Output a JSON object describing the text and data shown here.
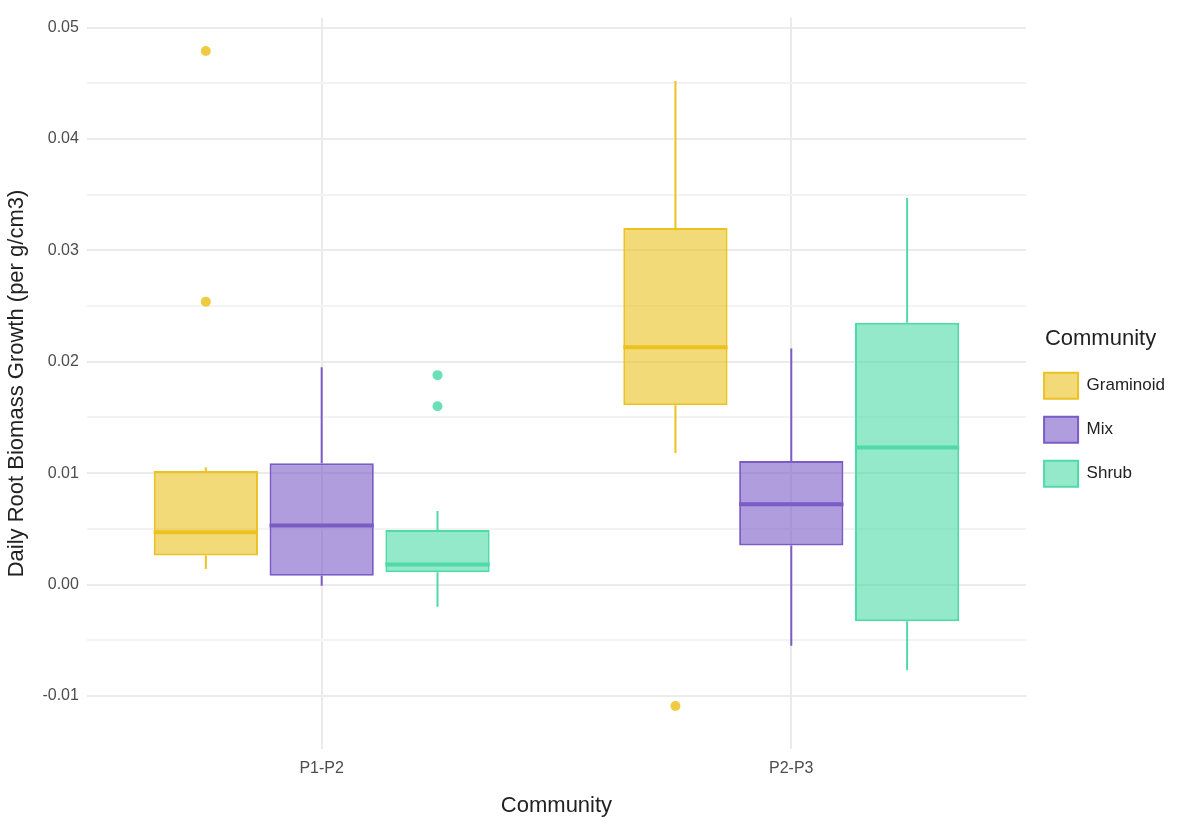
{
  "chart_data": {
    "type": "box",
    "xlabel": "Community",
    "ylabel": "Daily Root Biomass Growth (per g/cm3)",
    "legend_title": "Community",
    "legend": "right",
    "grid": true,
    "categories": [
      "P1-P2",
      "P2-P3"
    ],
    "ylim": [
      -0.0148,
      0.0509
    ],
    "yticks": [
      {
        "value": -0.01,
        "label": "-0.01"
      },
      {
        "value": -0.005,
        "label": null
      },
      {
        "value": 0,
        "label": "0.00"
      },
      {
        "value": 0.005,
        "label": null
      },
      {
        "value": 0.01,
        "label": "0.01"
      },
      {
        "value": 0.015,
        "label": null
      },
      {
        "value": 0.02,
        "label": "0.02"
      },
      {
        "value": 0.025,
        "label": null
      },
      {
        "value": 0.03,
        "label": "0.03"
      },
      {
        "value": 0.035,
        "label": null
      },
      {
        "value": 0.04,
        "label": "0.04"
      },
      {
        "value": 0.045,
        "label": null
      },
      {
        "value": 0.05,
        "label": "0.05"
      }
    ],
    "series": [
      {
        "name": "Graminoid",
        "color": "#ebc21f",
        "boxes": [
          {
            "low": 0.0014,
            "q1": 0.0026,
            "median": 0.0047,
            "q3": 0.0102,
            "high": 0.0105,
            "outliers": [
              0.0479,
              0.0254
            ]
          },
          {
            "low": 0.0118,
            "q1": 0.0161,
            "median": 0.0213,
            "q3": 0.032,
            "high": 0.0452,
            "outliers": [
              -0.0109
            ]
          }
        ]
      },
      {
        "name": "Mix",
        "color": "#7b5cc6",
        "boxes": [
          {
            "low": -0.0001,
            "q1": 0.0008,
            "median": 0.0053,
            "q3": 0.0109,
            "high": 0.0195
          },
          {
            "low": -0.0055,
            "q1": 0.0035,
            "median": 0.0072,
            "q3": 0.0111,
            "high": 0.0212
          }
        ]
      },
      {
        "name": "Shrub",
        "color": "#4fdaa8",
        "boxes": [
          {
            "low": -0.002,
            "q1": 0.0011,
            "median": 0.0018,
            "q3": 0.0049,
            "high": 0.0066,
            "outliers": [
              0.0188,
              0.016
            ]
          },
          {
            "low": -0.0077,
            "q1": -0.0033,
            "median": 0.0123,
            "q3": 0.0235,
            "high": 0.0347
          }
        ]
      }
    ]
  }
}
